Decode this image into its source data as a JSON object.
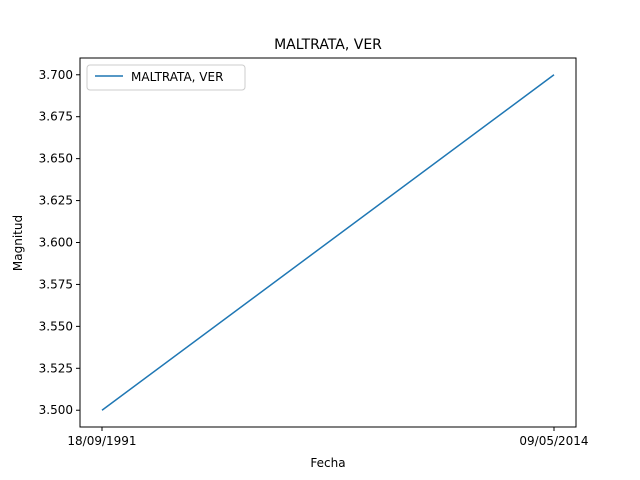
{
  "chart_data": {
    "type": "line",
    "title": "MALTRATA, VER",
    "xlabel": "Fecha",
    "ylabel": "Magnitud",
    "x": [
      "18/09/1991",
      "09/05/2014"
    ],
    "series": [
      {
        "name": "MALTRATA, VER",
        "color": "#1f77b4",
        "values": [
          3.5,
          3.7
        ]
      }
    ],
    "ylim": [
      3.49,
      3.71
    ],
    "yticks": [
      "3.500",
      "3.525",
      "3.550",
      "3.575",
      "3.600",
      "3.625",
      "3.650",
      "3.675",
      "3.700"
    ],
    "xticks": [
      "18/09/1991",
      "09/05/2014"
    ],
    "grid": false,
    "legend_position": "top-left"
  }
}
